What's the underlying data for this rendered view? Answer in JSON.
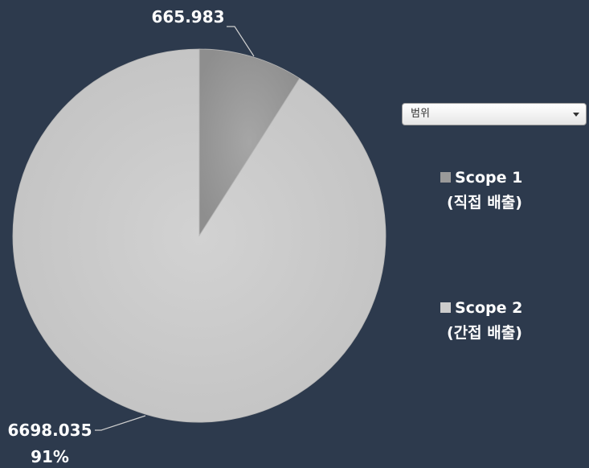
{
  "chart_data": {
    "type": "pie",
    "categories": [
      "Scope 1 (직접 배출)",
      "Scope 2 (간접 배출)"
    ],
    "values": [
      665.983,
      6698.035
    ],
    "data_labels": [
      {
        "value": "665.983",
        "percent": ""
      },
      {
        "value": "6698.035",
        "percent": "91%"
      }
    ],
    "colors": [
      "#9a9a9a",
      "#cccccc"
    ],
    "legend_position": "right",
    "title": ""
  },
  "filter": {
    "label": "범위"
  },
  "legend": {
    "items": [
      {
        "line1": "Scope 1",
        "line2": "(직접 배출)",
        "color": "#9a9a9a"
      },
      {
        "line1": "Scope 2",
        "line2": "(간접 배출)",
        "color": "#cccccc"
      }
    ]
  }
}
